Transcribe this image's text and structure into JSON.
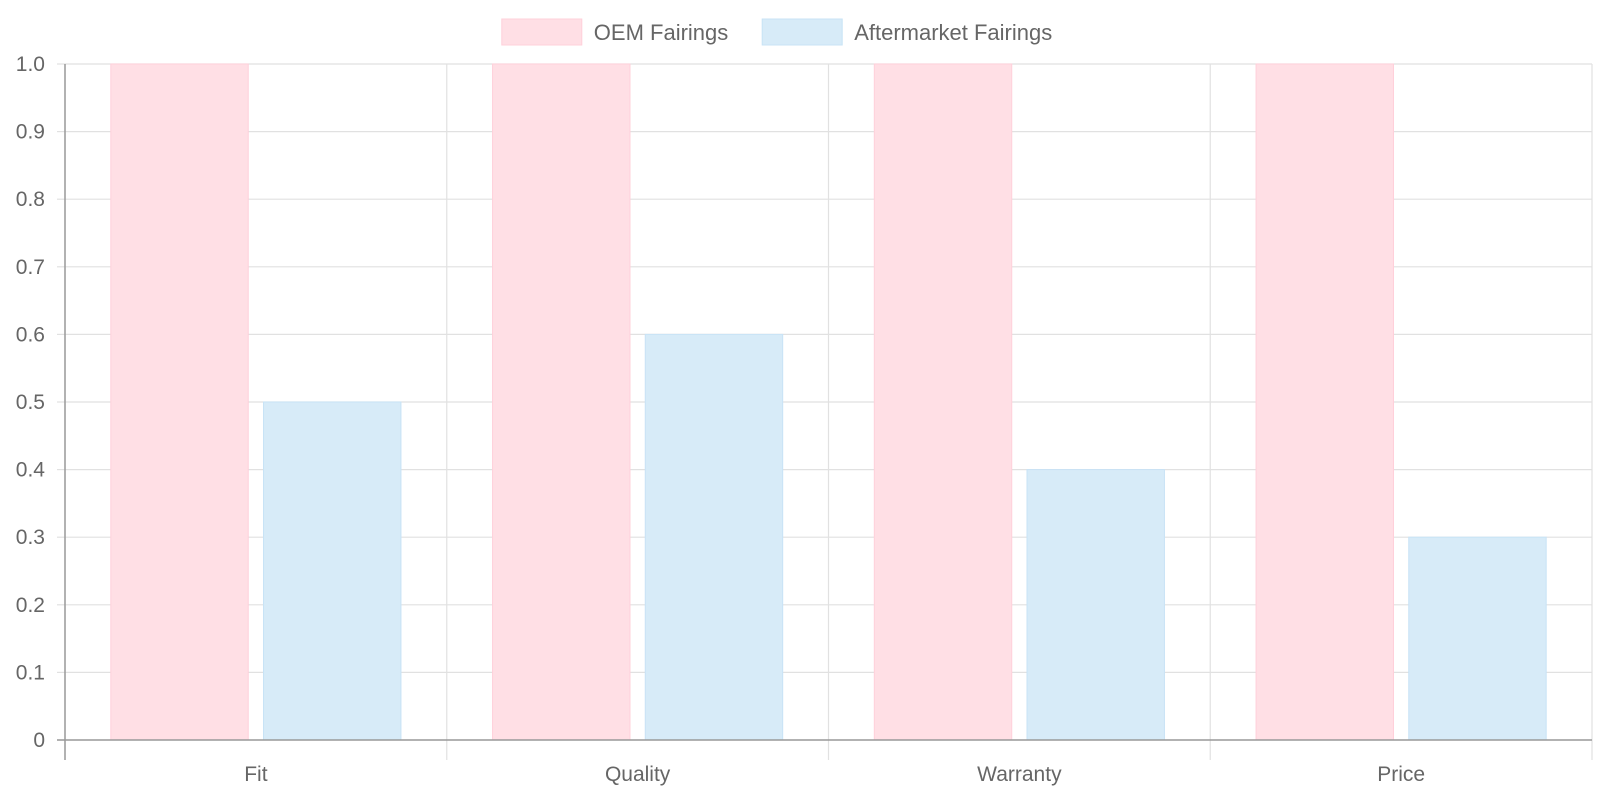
{
  "chart_data": {
    "type": "bar",
    "categories": [
      "Fit",
      "Quality",
      "Warranty",
      "Price"
    ],
    "series": [
      {
        "name": "OEM Fairings",
        "values": [
          1.0,
          1.0,
          1.0,
          1.0
        ],
        "color": "#ffdfe5",
        "border_color": "#ffd0da"
      },
      {
        "name": "Aftermarket Fairings",
        "values": [
          0.5,
          0.6,
          0.4,
          0.3
        ],
        "color": "#d7ebf8",
        "border_color": "#c8e3f6"
      }
    ],
    "y_ticks": [
      "0",
      "0.1",
      "0.2",
      "0.3",
      "0.4",
      "0.5",
      "0.6",
      "0.7",
      "0.8",
      "0.9",
      "1.0"
    ],
    "ylim": [
      0,
      1.0
    ],
    "title": "",
    "xlabel": "",
    "ylabel": "",
    "grid": true,
    "legend_position": "top-center"
  }
}
